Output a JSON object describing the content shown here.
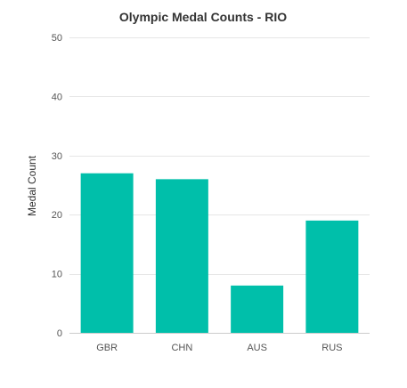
{
  "chart_data": {
    "type": "bar",
    "title": "Olympic Medal Counts - RIO",
    "xlabel": "",
    "ylabel": "Medal Count",
    "categories": [
      "GBR",
      "CHN",
      "AUS",
      "RUS"
    ],
    "values": [
      27,
      26,
      8,
      19
    ],
    "ylim": [
      0,
      50
    ],
    "yticks": [
      0,
      10,
      20,
      30,
      40,
      50
    ],
    "grid": true,
    "bar_color": "#00BFAA"
  }
}
